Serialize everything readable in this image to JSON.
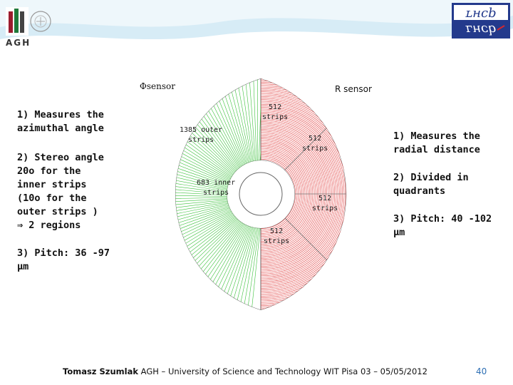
{
  "header": {
    "logo_text": "AGH",
    "lhcb_logo_text": "LHCb",
    "colors": {
      "band": "#d7ecf6",
      "band_light": "#eef7fb",
      "lhcb_box": "#233a8c"
    }
  },
  "diagram": {
    "phi_sensor_title": "Φsensor",
    "r_sensor_title": "R sensor",
    "outer_strips_label": "1385 outer\nstrips",
    "inner_strips_label": "683 inner\nstrips",
    "r_labels": [
      "512\nstrips",
      "512\nstrips",
      "512\nstrips",
      "512\nstrips"
    ],
    "colors": {
      "phi": "#3cc13c",
      "r": "#e03a3a"
    }
  },
  "left_list": {
    "item1": "1) Measures the\n   azimuthal angle",
    "item2": "2) Stereo angle\n   20o for the\n   inner strips\n   (10o for the\n   outer strips )\n   ⇒ 2 regions",
    "item3": "3) Pitch: 36 -97\n   μm"
  },
  "right_list": {
    "item1": "1) Measures the\n   radial distance",
    "item2": "2) Divided in\n   quadrants",
    "item3": "3) Pitch: 40 -102\n   μm"
  },
  "footer": {
    "author": "Tomasz Szumlak",
    "text": " AGH – University of Science and Technology WIT Pisa 03 – 05/05/2012",
    "page": "40"
  }
}
